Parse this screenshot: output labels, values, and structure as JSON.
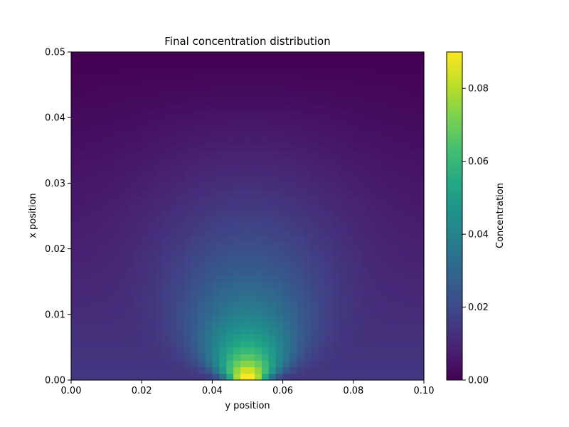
{
  "chart_data": {
    "type": "heatmap",
    "title": "Final concentration distribution",
    "xlabel": "y position",
    "ylabel": "x position",
    "xlim": [
      0.0,
      0.1
    ],
    "ylim": [
      0.0,
      0.05
    ],
    "xticks": [
      "0.00",
      "0.02",
      "0.04",
      "0.06",
      "0.08",
      "0.10"
    ],
    "yticks": [
      "0.00",
      "0.01",
      "0.02",
      "0.03",
      "0.04",
      "0.05"
    ],
    "colormap": "viridis",
    "colorbar": {
      "label": "Concentration",
      "range": [
        0.0,
        0.09
      ],
      "ticks": [
        "0.00",
        "0.02",
        "0.04",
        "0.06",
        "0.08"
      ]
    },
    "grid": false,
    "grid_shape": {
      "x_cells": 50,
      "y_cells": 50
    },
    "field_description_values": {
      "peak_concentration": 0.09,
      "peak_location": {
        "y_position": 0.05,
        "x_position": 0.0
      },
      "edge_concentration_at_x0": 0.015,
      "concentration_at_top": 0.0
    }
  }
}
